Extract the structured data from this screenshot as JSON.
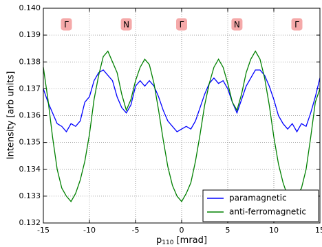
{
  "chart_data": {
    "type": "line",
    "x_label": {
      "base": "p",
      "sub": "110",
      "rest": " [mrad]"
    },
    "y_label": "Intensity [arb units]",
    "x": [
      -15,
      -14.5,
      -14,
      -13.5,
      -13,
      -12.5,
      -12,
      -11.5,
      -11,
      -10.5,
      -10,
      -9.5,
      -9,
      -8.5,
      -8,
      -7.5,
      -7,
      -6.5,
      -6,
      -5.5,
      -5,
      -4.5,
      -4,
      -3.5,
      -3,
      -2.5,
      -2,
      -1.5,
      -1,
      -0.5,
      0,
      0.5,
      1,
      1.5,
      2,
      2.5,
      3,
      3.5,
      4,
      4.5,
      5,
      5.5,
      6,
      6.5,
      7,
      7.5,
      8,
      8.5,
      9,
      9.5,
      10,
      10.5,
      11,
      11.5,
      12,
      12.5,
      13,
      13.5,
      14,
      14.5,
      15
    ],
    "series": [
      {
        "name": "paramagnetic",
        "color": "#0000ff",
        "values": [
          0.137,
          0.1365,
          0.1361,
          0.1357,
          0.1356,
          0.1354,
          0.1357,
          0.1356,
          0.1358,
          0.1365,
          0.1367,
          0.1373,
          0.1376,
          0.1377,
          0.1375,
          0.1373,
          0.1367,
          0.1363,
          0.1361,
          0.1364,
          0.1371,
          0.1373,
          0.1371,
          0.1373,
          0.1371,
          0.1367,
          0.1362,
          0.1358,
          0.1356,
          0.1354,
          0.1355,
          0.1356,
          0.1355,
          0.1358,
          0.1363,
          0.1368,
          0.1372,
          0.1374,
          0.1372,
          0.1373,
          0.137,
          0.1365,
          0.1361,
          0.1366,
          0.1371,
          0.1374,
          0.1377,
          0.1377,
          0.1375,
          0.1371,
          0.1366,
          0.136,
          0.1357,
          0.1355,
          0.1357,
          0.1354,
          0.1357,
          0.1356,
          0.1361,
          0.1367,
          0.1374
        ]
      },
      {
        "name": "anti-ferromagnetic",
        "color": "#008000",
        "values": [
          0.1378,
          0.1366,
          0.1352,
          0.134,
          0.1333,
          0.133,
          0.1328,
          0.1331,
          0.1336,
          0.1343,
          0.1353,
          0.1366,
          0.1375,
          0.1382,
          0.1384,
          0.138,
          0.1376,
          0.1368,
          0.1362,
          0.1366,
          0.1373,
          0.1378,
          0.1381,
          0.1379,
          0.1372,
          0.1362,
          0.1351,
          0.1341,
          0.1334,
          0.133,
          0.1328,
          0.1331,
          0.1335,
          0.1343,
          0.1353,
          0.1364,
          0.1372,
          0.1378,
          0.1381,
          0.1378,
          0.1372,
          0.1365,
          0.1362,
          0.1368,
          0.1376,
          0.1381,
          0.1384,
          0.1381,
          0.1374,
          0.1364,
          0.1352,
          0.1342,
          0.1335,
          0.133,
          0.1328,
          0.133,
          0.1333,
          0.134,
          0.1352,
          0.1365,
          0.137
        ]
      }
    ],
    "xlim": [
      -15,
      15
    ],
    "xticks": [
      -15,
      -10,
      -5,
      0,
      5,
      10,
      15
    ],
    "ylim": [
      0.132,
      0.14
    ],
    "yticks": [
      0.132,
      0.133,
      0.134,
      0.135,
      0.136,
      0.137,
      0.138,
      0.139,
      {
        "value": 0.14,
        "label": "0.140"
      }
    ],
    "grid": true,
    "legend": "lower right",
    "annotations": [
      {
        "text": "Γ",
        "x": -12.5,
        "y": 0.1394
      },
      {
        "text": "N",
        "x": -6,
        "y": 0.1394
      },
      {
        "text": "Γ",
        "x": 0,
        "y": 0.1394
      },
      {
        "text": "N",
        "x": 6,
        "y": 0.1394
      },
      {
        "text": "Γ",
        "x": 12.5,
        "y": 0.1394
      }
    ]
  }
}
